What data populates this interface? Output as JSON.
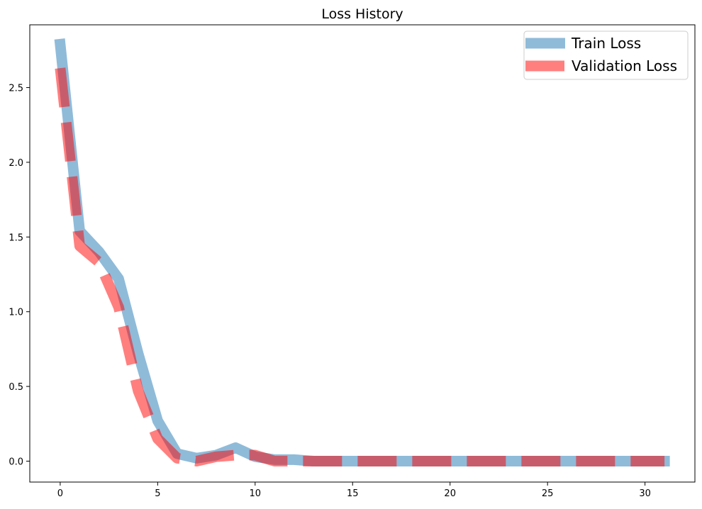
{
  "chart_data": {
    "type": "line",
    "title": "Loss History",
    "xlabel": "",
    "ylabel": "",
    "xlim": [
      -1.56,
      32.56
    ],
    "ylim": [
      -0.14,
      2.92
    ],
    "x_ticks": [
      0,
      5,
      10,
      15,
      20,
      25,
      30
    ],
    "y_ticks": [
      0.0,
      0.5,
      1.0,
      1.5,
      2.0,
      2.5
    ],
    "x_tick_labels": [
      "0",
      "5",
      "10",
      "15",
      "20",
      "25",
      "30"
    ],
    "y_tick_labels": [
      "0.0",
      "0.5",
      "1.0",
      "1.5",
      "2.0",
      "2.5"
    ],
    "grid": false,
    "legend_position": "top-right",
    "series": [
      {
        "name": "Train Loss",
        "color": "#1f77b4",
        "style": "solid",
        "x": [
          0,
          1,
          2,
          3,
          4,
          5,
          6,
          7,
          8,
          9,
          10,
          11,
          12,
          13,
          14,
          15,
          16,
          17,
          18,
          19,
          20,
          21,
          22,
          23,
          24,
          25,
          26,
          27,
          28,
          29,
          30,
          31
        ],
        "values": [
          2.79,
          1.54,
          1.4,
          1.22,
          0.72,
          0.27,
          0.05,
          0.02,
          0.04,
          0.09,
          0.03,
          0.01,
          0.01,
          0.0,
          0.0,
          0.0,
          0.0,
          0.0,
          0.0,
          0.0,
          0.0,
          0.0,
          0.0,
          0.0,
          0.0,
          0.0,
          0.0,
          0.0,
          0.0,
          0.0,
          0.0,
          0.0
        ]
      },
      {
        "name": "Validation Loss",
        "color": "#ff0000",
        "style": "dashed",
        "x": [
          0,
          1,
          2,
          3,
          4,
          5,
          6,
          7,
          8,
          9,
          10,
          11,
          12,
          13,
          14,
          15,
          16,
          17,
          18,
          19,
          20,
          21,
          22,
          23,
          24,
          25,
          26,
          27,
          28,
          29,
          30,
          31
        ],
        "values": [
          2.63,
          1.44,
          1.33,
          1.03,
          0.47,
          0.15,
          0.02,
          0.0,
          0.03,
          0.04,
          0.04,
          0.0,
          0.0,
          0.0,
          0.0,
          0.0,
          0.0,
          0.0,
          0.0,
          0.0,
          0.0,
          0.0,
          0.0,
          0.0,
          0.0,
          0.0,
          0.0,
          0.0,
          0.0,
          0.0,
          0.0,
          0.0
        ]
      }
    ]
  }
}
